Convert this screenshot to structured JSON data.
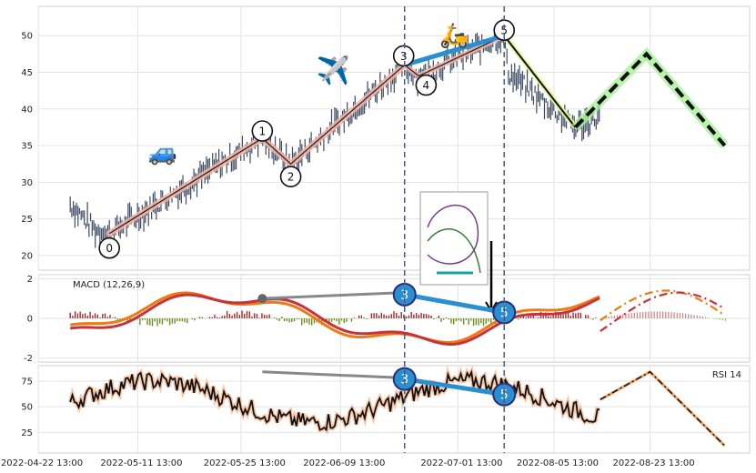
{
  "chart_data": {
    "type": "line",
    "grid": true,
    "x_tick_labels": [
      "2022-04-22 13:00",
      "2022-05-11 13:00",
      "2022-05-25 13:00",
      "2022-06-09 13:00",
      "2022-07-01 13:00",
      "2022-08-05 13:00",
      "2022-08-23 13:00"
    ],
    "price_panel": {
      "ylim": [
        18,
        54
      ],
      "yticks": [
        20,
        25,
        30,
        35,
        40,
        45,
        50
      ],
      "wave_points": [
        {
          "label": "0",
          "x": 0.1,
          "y": 23
        },
        {
          "label": "1",
          "x": 0.315,
          "y": 36
        },
        {
          "label": "2",
          "x": 0.355,
          "y": 32.5
        },
        {
          "label": "3",
          "x": 0.515,
          "y": 46
        },
        {
          "label": "4",
          "x": 0.535,
          "y": 44.5
        },
        {
          "label": "5",
          "x": 0.655,
          "y": 50
        }
      ],
      "projection_solid": [
        [
          0.655,
          50
        ],
        [
          0.755,
          37.5
        ]
      ],
      "projection_dashed": [
        [
          0.755,
          37.5
        ],
        [
          0.855,
          47.5
        ],
        [
          0.965,
          35
        ]
      ],
      "vlines_x": [
        0.515,
        0.655
      ]
    },
    "macd_panel": {
      "label": "MACD (12,26,9)",
      "ylim": [
        -2.2,
        2.2
      ],
      "yticks": [
        2,
        0,
        -2
      ],
      "divergence": [
        {
          "label": "3",
          "x": 0.515,
          "y": 1.2
        },
        {
          "label": "5",
          "x": 0.655,
          "y": 0.3
        }
      ],
      "gray_line": [
        [
          0.315,
          1.0
        ],
        [
          0.515,
          1.3
        ]
      ]
    },
    "rsi_panel": {
      "label": "RSI 14",
      "ylim": [
        5,
        90
      ],
      "yticks": [
        25,
        50,
        75
      ],
      "divergence": [
        {
          "label": "3",
          "x": 0.515,
          "y": 77
        },
        {
          "label": "5",
          "x": 0.655,
          "y": 62
        }
      ],
      "gray_line": [
        [
          0.315,
          84
        ],
        [
          0.515,
          78
        ]
      ]
    }
  }
}
